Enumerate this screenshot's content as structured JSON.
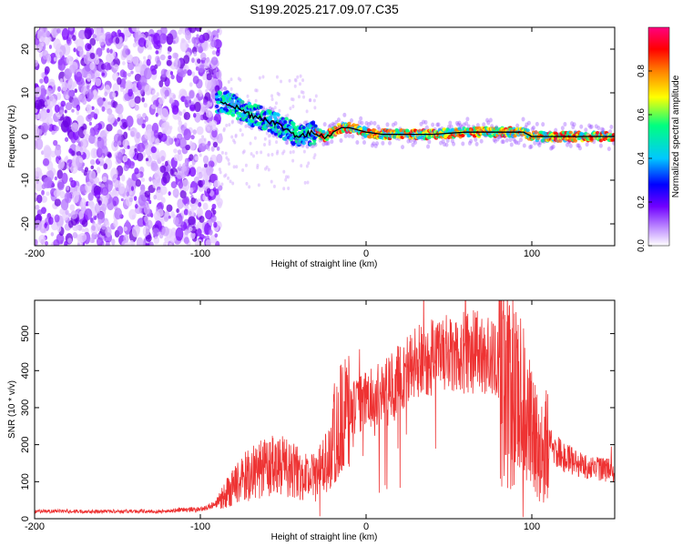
{
  "title": "S199.2025.217.09.07.C35",
  "chart_data": [
    {
      "type": "heatmap",
      "xlabel": "Height of straight line (km)",
      "ylabel": "Frequency (Hz)",
      "xlim": [
        -200,
        150
      ],
      "ylim": [
        -25,
        25
      ],
      "xticks": [
        -200,
        -100,
        0,
        100
      ],
      "yticks": [
        -20,
        -10,
        0,
        10,
        20
      ],
      "colorbar": {
        "label": "Normalized spectral amplitude",
        "range": [
          0,
          1
        ],
        "ticks": [
          0.0,
          0.2,
          0.4,
          0.6,
          0.8
        ],
        "colormap": [
          "#ffffff",
          "#b060ff",
          "#7000ff",
          "#0000ff",
          "#00c8ff",
          "#00ff80",
          "#ffff00",
          "#ff8000",
          "#ff0000",
          "#ff0080"
        ]
      },
      "ridge_line": {
        "x": [
          -85,
          -80,
          -70,
          -60,
          -50,
          -40,
          -30,
          -25,
          -20,
          -15,
          -10,
          0,
          10,
          20,
          40,
          60,
          80,
          95,
          100,
          110,
          130,
          150
        ],
        "y": [
          8,
          7,
          5,
          4,
          2,
          0,
          1,
          0,
          1,
          2,
          2,
          1,
          0.5,
          0.5,
          0.5,
          1,
          1,
          1,
          0,
          0,
          0,
          0
        ],
        "color": "#000000"
      }
    },
    {
      "type": "line",
      "xlabel": "Height of straight line (km)",
      "ylabel": "SNR (10 * v/v)",
      "xlim": [
        -200,
        150
      ],
      "ylim": [
        0,
        590
      ],
      "xticks": [
        -200,
        -100,
        0,
        100
      ],
      "yticks": [
        0,
        100,
        200,
        300,
        400,
        500
      ],
      "color": "#ee3333",
      "series": [
        {
          "x": [
            -200,
            -180,
            -160,
            -140,
            -120,
            -110,
            -100,
            -90,
            -80,
            -70,
            -60,
            -50,
            -40,
            -30,
            -25,
            -20,
            -15,
            -10,
            0,
            10,
            20,
            30,
            40,
            50,
            60,
            70,
            80,
            90,
            95,
            100,
            105,
            110,
            120,
            130,
            140,
            150
          ],
          "y": [
            20,
            20,
            20,
            20,
            20,
            25,
            25,
            40,
            90,
            120,
            140,
            140,
            120,
            110,
            150,
            220,
            270,
            290,
            320,
            340,
            380,
            420,
            440,
            440,
            450,
            450,
            420,
            360,
            300,
            220,
            180,
            200,
            165,
            145,
            135,
            130
          ]
        }
      ]
    }
  ]
}
